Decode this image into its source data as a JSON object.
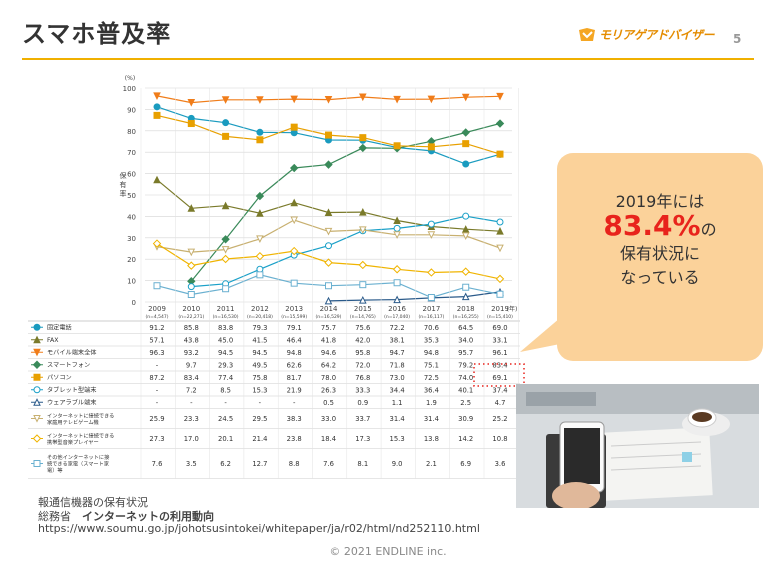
{
  "slide": {
    "title": "スマホ普及率",
    "logo_text": "モリアゲアドバイザー",
    "page_number": "5",
    "footer": "© 2021 ENDLINE inc."
  },
  "callout": {
    "line1": "2019年には",
    "highlight": "83.4%",
    "after_highlight": "の",
    "line3": "保有状況に",
    "line4": "なっている"
  },
  "source": {
    "line1": "報通信機器の保有状況",
    "line2_prefix": "総務省　",
    "line2_title": "インターネットの利用動向",
    "url": "https://www.soumu.go.jp/johotsusintokei/whitepaper/ja/r02/html/nd252110.html"
  },
  "photo": {
    "icon": "smartphone-desk-photo"
  },
  "chart_data": {
    "type": "line",
    "y_unit": "(%)",
    "ylabel": "保有率",
    "x_unit": "(年)",
    "ylim": [
      0,
      100
    ],
    "yticks": [
      "0",
      "10",
      "20",
      "30",
      "40",
      "50",
      "60",
      "70",
      "80",
      "90",
      "100"
    ],
    "x": [
      "2009",
      "2010",
      "2011",
      "2012",
      "2013",
      "2014",
      "2015",
      "2016",
      "2017",
      "2018",
      "2019"
    ],
    "x_sub": [
      "(n=4,547)",
      "(n=22,271)",
      "(n=16,530)",
      "(n=20,418)",
      "(n=15,599)",
      "(n=16,529)",
      "(n=14,765)",
      "(n=17,040)",
      "(n=16,117)",
      "(n=16,255)",
      "(n=15,410)"
    ],
    "grid": true,
    "series": [
      {
        "name": "固定電話",
        "color": "#1a9bbf",
        "marker": "circle-filled",
        "values": [
          91.2,
          85.8,
          83.8,
          79.3,
          79.1,
          75.7,
          75.6,
          72.2,
          70.6,
          64.5,
          69.0
        ],
        "labels": [
          "91.2",
          "85.8",
          "83.8",
          "79.3",
          "79.1",
          "75.7",
          "75.6",
          "72.2",
          "70.6",
          "64.5",
          "69.0"
        ]
      },
      {
        "name": "FAX",
        "color": "#7a7a2a",
        "marker": "triangle-filled",
        "values": [
          57.1,
          43.8,
          45.0,
          41.5,
          46.4,
          41.8,
          42.0,
          38.1,
          35.3,
          34.0,
          33.1
        ],
        "labels": [
          "57.1",
          "43.8",
          "45.0",
          "41.5",
          "46.4",
          "41.8",
          "42.0",
          "38.1",
          "35.3",
          "34.0",
          "33.1"
        ]
      },
      {
        "name": "モバイル端末全体",
        "color": "#f07d1a",
        "marker": "triangle-down-filled",
        "values": [
          96.3,
          93.2,
          94.5,
          94.5,
          94.8,
          94.6,
          95.8,
          94.7,
          94.8,
          95.7,
          96.1
        ],
        "labels": [
          "96.3",
          "93.2",
          "94.5",
          "94.5",
          "94.8",
          "94.6",
          "95.8",
          "94.7",
          "94.8",
          "95.7",
          "96.1"
        ]
      },
      {
        "name": "スマートフォン",
        "color": "#3a8a5a",
        "marker": "diamond-filled",
        "values": [
          null,
          9.7,
          29.3,
          49.5,
          62.6,
          64.2,
          72.0,
          71.8,
          75.1,
          79.2,
          83.4
        ],
        "labels": [
          "-",
          "9.7",
          "29.3",
          "49.5",
          "62.6",
          "64.2",
          "72.0",
          "71.8",
          "75.1",
          "79.2",
          "83.4"
        ]
      },
      {
        "name": "パソコン",
        "color": "#e8a000",
        "marker": "square-filled",
        "values": [
          87.2,
          83.4,
          77.4,
          75.8,
          81.7,
          78.0,
          76.8,
          73.0,
          72.5,
          74.0,
          69.1
        ],
        "labels": [
          "87.2",
          "83.4",
          "77.4",
          "75.8",
          "81.7",
          "78.0",
          "76.8",
          "73.0",
          "72.5",
          "74.0",
          "69.1"
        ]
      },
      {
        "name": "タブレット型端末",
        "color": "#1aa0c8",
        "marker": "circle-open",
        "values": [
          null,
          7.2,
          8.5,
          15.3,
          21.9,
          26.3,
          33.3,
          34.4,
          36.4,
          40.1,
          37.4
        ],
        "labels": [
          "-",
          "7.2",
          "8.5",
          "15.3",
          "21.9",
          "26.3",
          "33.3",
          "34.4",
          "36.4",
          "40.1",
          "37.4"
        ]
      },
      {
        "name": "ウェアラブル端末",
        "color": "#2a5a8a",
        "marker": "triangle-open",
        "values": [
          null,
          null,
          null,
          null,
          null,
          0.5,
          0.9,
          1.1,
          1.9,
          2.5,
          4.7
        ],
        "labels": [
          "-",
          "-",
          "-",
          "-",
          "-",
          "0.5",
          "0.9",
          "1.1",
          "1.9",
          "2.5",
          "4.7"
        ]
      },
      {
        "name": "インターネットに接続できる家庭用テレビゲーム機",
        "color": "#c8b070",
        "marker": "triangle-down-open",
        "values": [
          25.9,
          23.3,
          24.5,
          29.5,
          38.3,
          33.0,
          33.7,
          31.4,
          31.4,
          30.9,
          25.2
        ],
        "labels": [
          "25.9",
          "23.3",
          "24.5",
          "29.5",
          "38.3",
          "33.0",
          "33.7",
          "31.4",
          "31.4",
          "30.9",
          "25.2"
        ]
      },
      {
        "name": "インターネットに接続できる携帯型音楽プレイヤー",
        "color": "#f0b400",
        "marker": "diamond-open",
        "values": [
          27.3,
          17.0,
          20.1,
          21.4,
          23.8,
          18.4,
          17.3,
          15.3,
          13.8,
          14.2,
          10.8
        ],
        "labels": [
          "27.3",
          "17.0",
          "20.1",
          "21.4",
          "23.8",
          "18.4",
          "17.3",
          "15.3",
          "13.8",
          "14.2",
          "10.8"
        ]
      },
      {
        "name": "その他インターネットに接続できる家電（スマート家電）等",
        "color": "#6ab0d0",
        "marker": "square-open",
        "values": [
          7.6,
          3.5,
          6.2,
          12.7,
          8.8,
          7.6,
          8.1,
          9.0,
          2.1,
          6.9,
          3.6
        ],
        "labels": [
          "7.6",
          "3.5",
          "6.2",
          "12.7",
          "8.8",
          "7.6",
          "8.1",
          "9.0",
          "2.1",
          "6.9",
          "3.6"
        ]
      }
    ],
    "table_row_names": [
      [
        "固定電話"
      ],
      [
        "FAX"
      ],
      [
        "モバイル端末全体"
      ],
      [
        "スマートフォン"
      ],
      [
        "パソコン"
      ],
      [
        "タブレット型端末"
      ],
      [
        "ウェアラブル端末"
      ],
      [
        "インターネットに接続できる",
        "家庭用テレビゲーム機"
      ],
      [
        "インターネットに接続できる",
        "携帯型音楽プレイヤー"
      ],
      [
        "その他インターネットに接",
        "続できる家電（スマート家",
        "電）等"
      ]
    ]
  }
}
